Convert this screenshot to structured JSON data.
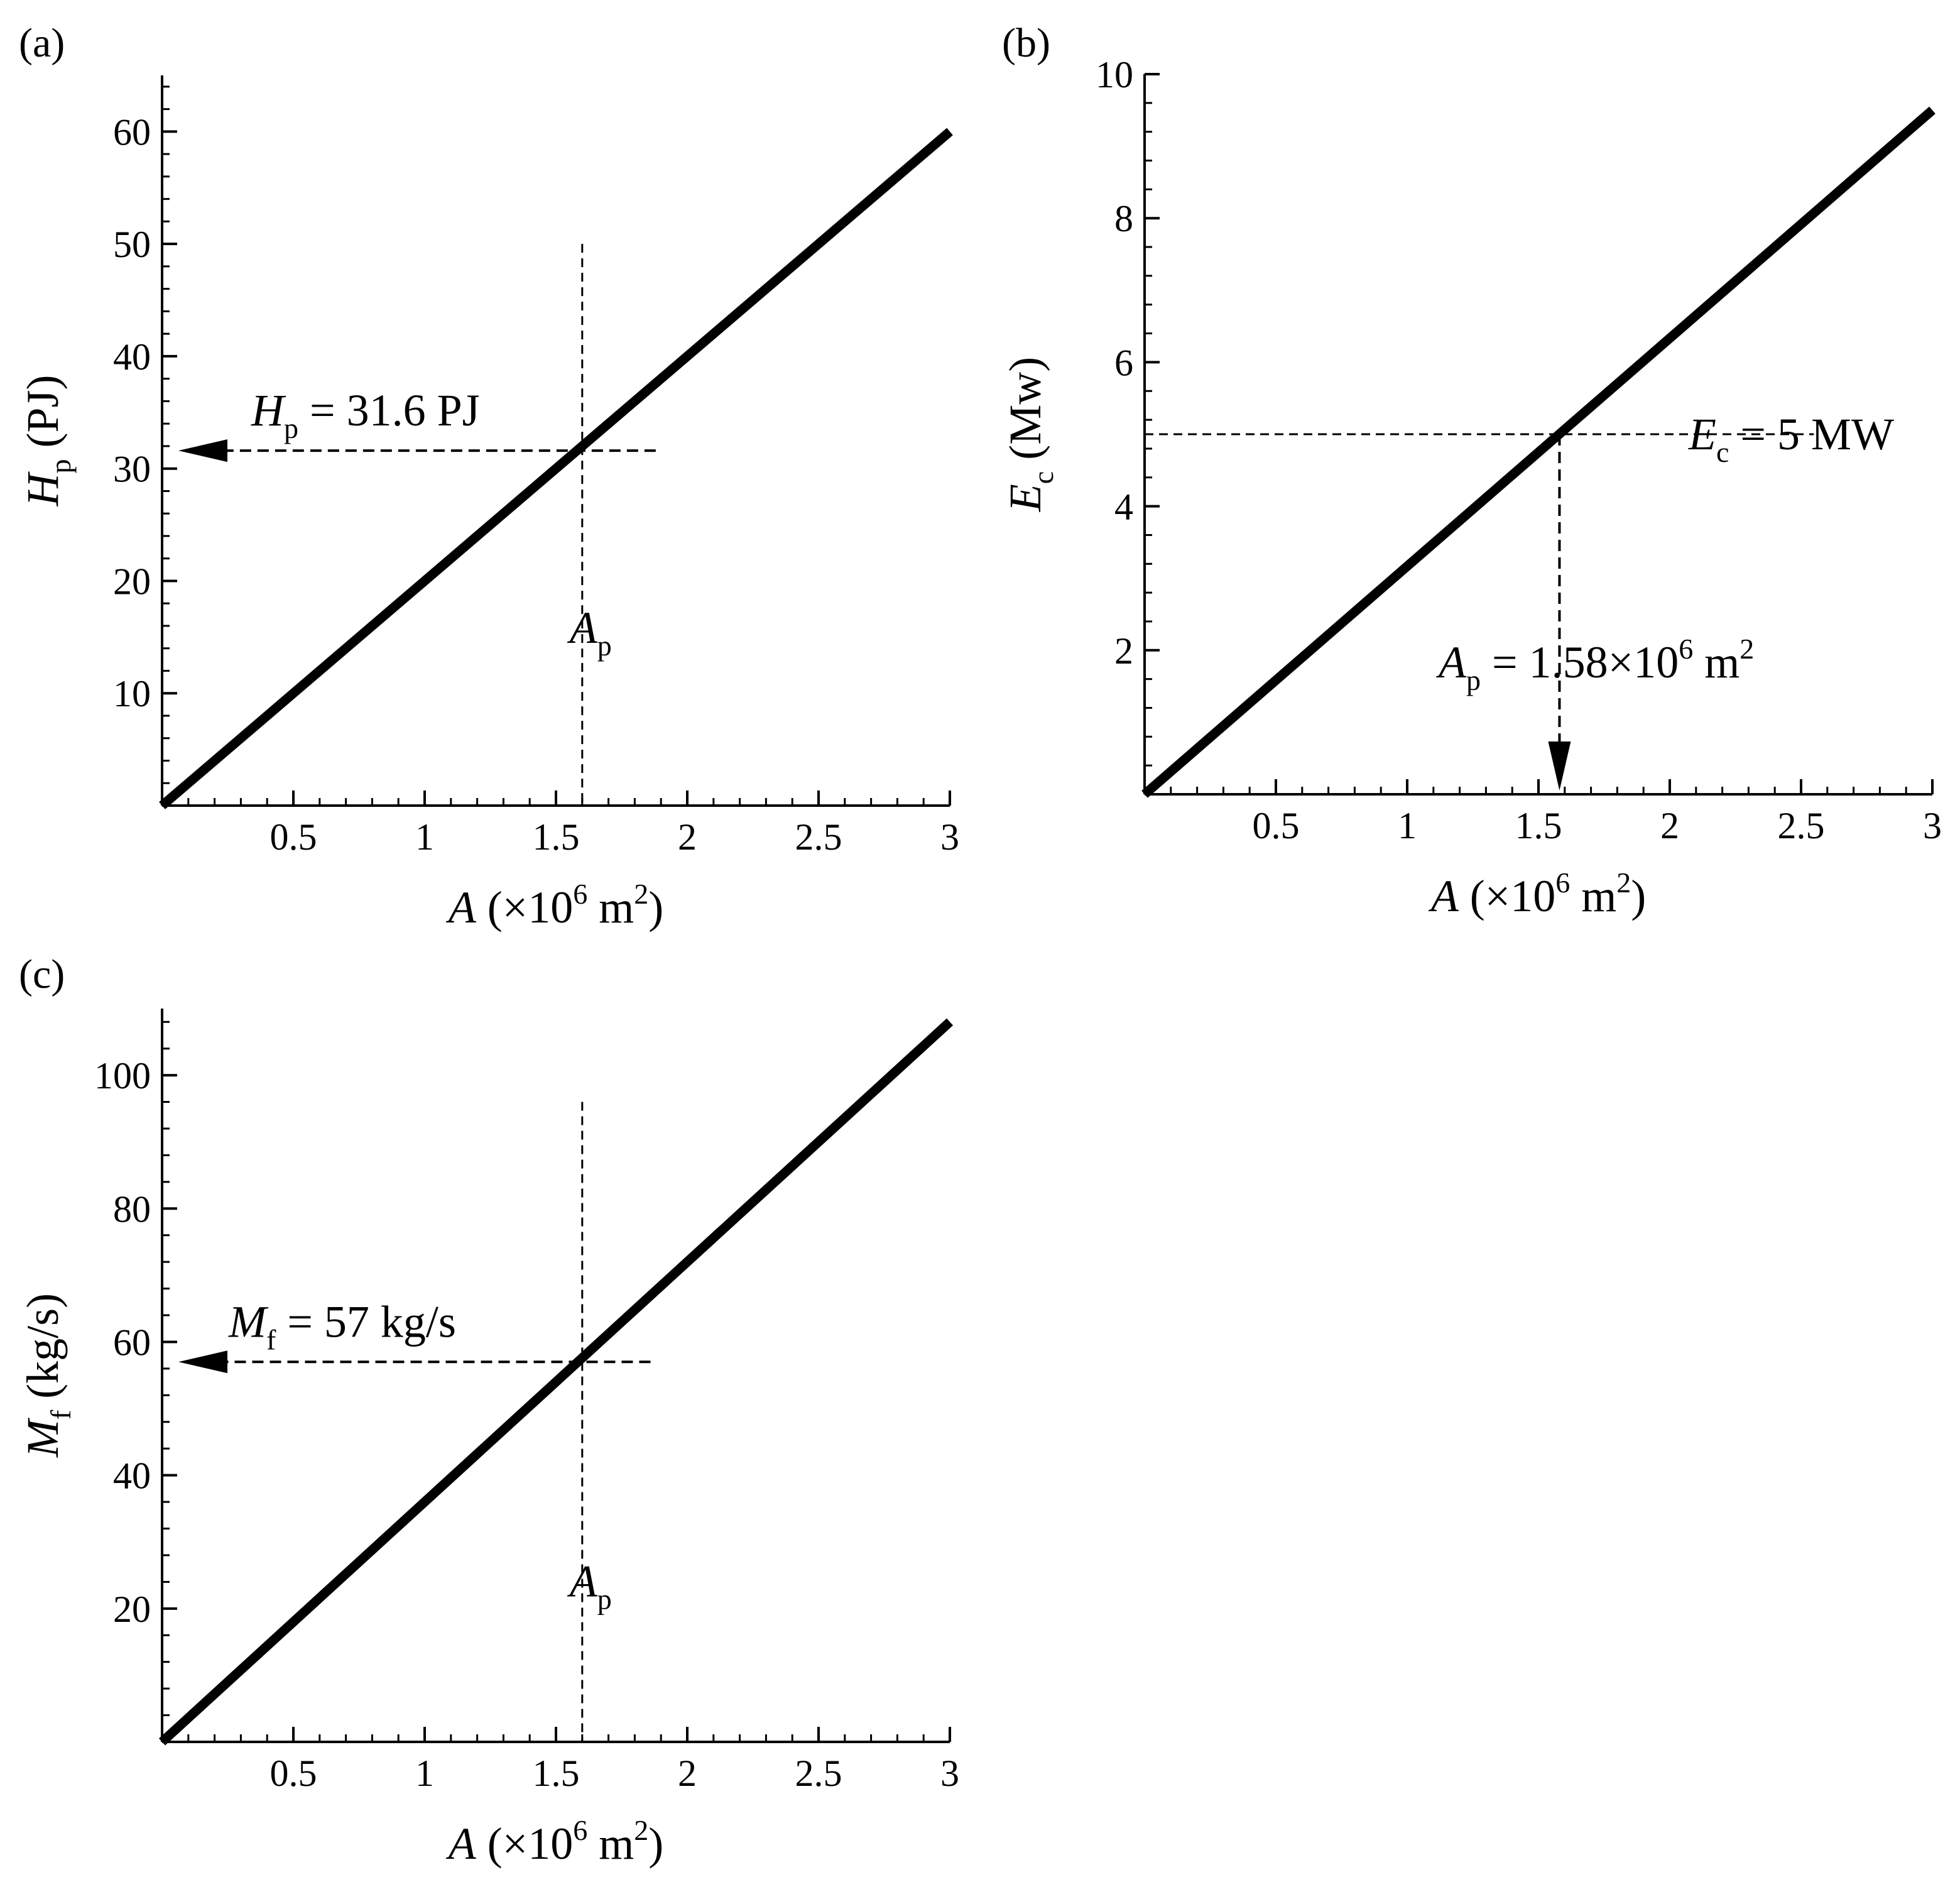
{
  "chart_data": [
    {
      "id": "a",
      "panel_label": "(a)",
      "type": "line",
      "xlabel": {
        "sym": "A",
        "mid": " (×10",
        "sup": "6",
        "unit": " m",
        "sup2": "2",
        "end": ")"
      },
      "ylabel": {
        "sym": "H",
        "sub": "p",
        "unit": " (PJ)"
      },
      "x_ticks": [
        "0.5",
        "1",
        "1.5",
        "2",
        "2.5",
        "3"
      ],
      "y_ticks": [
        "10",
        "20",
        "30",
        "40",
        "50",
        "60"
      ],
      "xlim": [
        0,
        3
      ],
      "ylim": [
        0,
        65
      ],
      "x_tick_values": [
        0.5,
        1,
        1.5,
        2,
        2.5,
        3
      ],
      "y_tick_values": [
        10,
        20,
        30,
        40,
        50,
        60
      ],
      "x_minor_step": 0.1,
      "y_minor_step": 2,
      "series": [
        {
          "x": [
            0,
            3
          ],
          "y": [
            0,
            60
          ]
        }
      ],
      "ref_x": 1.6,
      "ref_y": 31.6,
      "annotation": {
        "sym": "H",
        "sub": "p",
        "text": " = 31.6 PJ"
      },
      "marker": {
        "sym": "A",
        "sub": "p"
      }
    },
    {
      "id": "b",
      "panel_label": "(b)",
      "type": "line",
      "xlabel": {
        "sym": "A",
        "mid": " (×10",
        "sup": "6",
        "unit": " m",
        "sup2": "2",
        "end": ")"
      },
      "ylabel": {
        "sym": "E",
        "sub": "c",
        "unit": " (Mw)"
      },
      "x_ticks": [
        "0.5",
        "1",
        "1.5",
        "2",
        "2.5",
        "3"
      ],
      "y_ticks": [
        "2",
        "4",
        "6",
        "8",
        "10"
      ],
      "xlim": [
        0,
        3
      ],
      "ylim": [
        0,
        10
      ],
      "x_tick_values": [
        0.5,
        1,
        1.5,
        2,
        2.5,
        3
      ],
      "y_tick_values": [
        2,
        4,
        6,
        8,
        10
      ],
      "x_minor_step": 0.1,
      "y_minor_step": 0.4,
      "series": [
        {
          "x": [
            0,
            3
          ],
          "y": [
            0,
            9.5
          ]
        }
      ],
      "ref_x": 1.58,
      "ref_y": 5,
      "annotation": {
        "sym": "E",
        "sub": "c",
        "text": " = 5 MW"
      },
      "annotation2": {
        "sym": "A",
        "sub": "p",
        "text": " = 1.58×10",
        "sup": "6",
        "text2": " m",
        "sup2": "2"
      }
    },
    {
      "id": "c",
      "panel_label": "(c)",
      "type": "line",
      "xlabel": {
        "sym": "A",
        "mid": " (×10",
        "sup": "6",
        "unit": " m",
        "sup2": "2",
        "end": ")"
      },
      "ylabel": {
        "sym": "M",
        "sub": "f",
        "unit": " (kg/s)"
      },
      "x_ticks": [
        "0.5",
        "1",
        "1.5",
        "2",
        "2.5",
        "3"
      ],
      "y_ticks": [
        "20",
        "40",
        "60",
        "80",
        "100"
      ],
      "xlim": [
        0,
        3
      ],
      "ylim": [
        0,
        110
      ],
      "x_tick_values": [
        0.5,
        1,
        1.5,
        2,
        2.5,
        3
      ],
      "y_tick_values": [
        20,
        40,
        60,
        80,
        100
      ],
      "x_minor_step": 0.1,
      "y_minor_step": 4,
      "series": [
        {
          "x": [
            0,
            3
          ],
          "y": [
            0,
            108
          ]
        }
      ],
      "ref_x": 1.6,
      "ref_y": 57,
      "annotation": {
        "sym": "M",
        "sub": "f",
        "text": " = 57 kg/s"
      },
      "marker": {
        "sym": "A",
        "sub": "p"
      }
    }
  ]
}
